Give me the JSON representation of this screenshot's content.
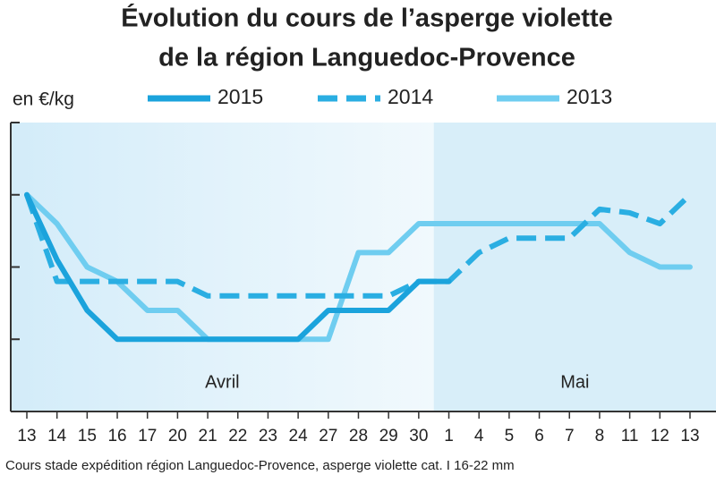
{
  "chart_data": {
    "type": "line",
    "title": [
      "Évolution du cours de l’asperge violette",
      "de la région Languedoc-Provence"
    ],
    "y_label": "en €/kg",
    "footnote": "Cours stade expédition région Languedoc-Provence, asperge violette cat. I 16-22 mm",
    "categories": [
      "13",
      "14",
      "15",
      "16",
      "17",
      "20",
      "21",
      "22",
      "23",
      "24",
      "27",
      "28",
      "29",
      "30",
      "1",
      "4",
      "5",
      "6",
      "7",
      "8",
      "11",
      "12",
      "13"
    ],
    "x_groups": [
      {
        "label": "Avril",
        "count": 14
      },
      {
        "label": "Mai",
        "count": 9
      }
    ],
    "ylim": [
      0,
      4
    ],
    "yticks": [
      1,
      2,
      3
    ],
    "legend": "top",
    "series": [
      {
        "name": "2015",
        "color": "#1ba3dc",
        "dash": false,
        "values": [
          3.0,
          2.1,
          1.4,
          1.0,
          1.0,
          1.0,
          1.0,
          1.0,
          1.0,
          1.0,
          1.4,
          1.4,
          1.4,
          1.8,
          1.8,
          null,
          null,
          null,
          null,
          null,
          null,
          null,
          null
        ]
      },
      {
        "name": "2014",
        "color": "#2aaee2",
        "dash": true,
        "values": [
          3.0,
          1.8,
          1.8,
          1.8,
          1.8,
          1.8,
          1.6,
          1.6,
          1.6,
          1.6,
          1.6,
          1.6,
          1.6,
          1.8,
          1.8,
          2.2,
          2.4,
          2.4,
          2.4,
          2.8,
          2.75,
          2.6,
          3.0
        ]
      },
      {
        "name": "2013",
        "color": "#6fcdf0",
        "dash": false,
        "values": [
          3.0,
          2.6,
          2.0,
          1.8,
          1.4,
          1.4,
          1.0,
          1.0,
          1.0,
          1.0,
          1.0,
          2.2,
          2.2,
          2.6,
          2.6,
          2.6,
          2.6,
          2.6,
          2.6,
          2.6,
          2.2,
          2.0,
          2.0
        ]
      }
    ]
  }
}
